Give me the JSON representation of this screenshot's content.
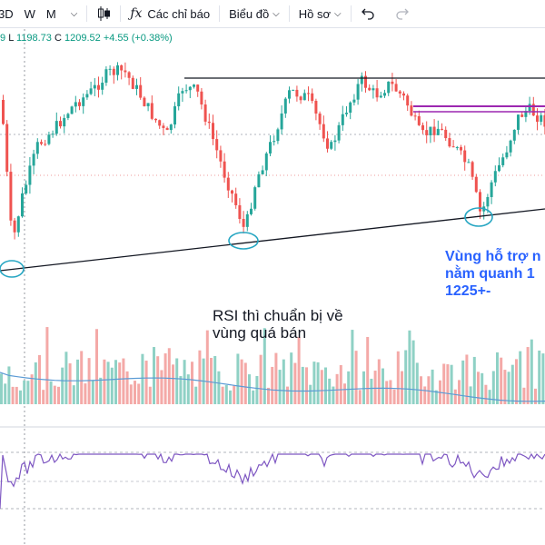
{
  "toolbar": {
    "interval_label": "3D",
    "interval_w": "W",
    "interval_m": "M",
    "indicators_label": "Các chỉ báo",
    "chart_label": "Biểu đồ",
    "profile_label": "Hồ sơ"
  },
  "ohlc": {
    "open_tail": "9",
    "low_label": "L",
    "low_value": "1198.73",
    "close_label": "C",
    "close_value": "1209.52",
    "change": "+4.55 (+0.38%)"
  },
  "annotations": {
    "rsi_line1": "RSI thì chuẩn bị về",
    "rsi_line2": "vùng quá bán",
    "support_line1": "Vùng hỗ trợ n",
    "support_line2": "nằm quanh 1",
    "support_line3": "1225+-"
  },
  "colors": {
    "up": "#26a69a",
    "down": "#ef5350",
    "annotation_blue": "#2962ff",
    "rsi_line": "#7e57c2",
    "volume_ma": "#5b9bd5",
    "resistance_purple": "#9c27b0",
    "circle_cyan": "#26a6c2"
  },
  "icons": {
    "candle": "candlestick-icon",
    "undo": "undo-icon",
    "redo": "redo-icon",
    "fx": "fx-icon"
  }
}
